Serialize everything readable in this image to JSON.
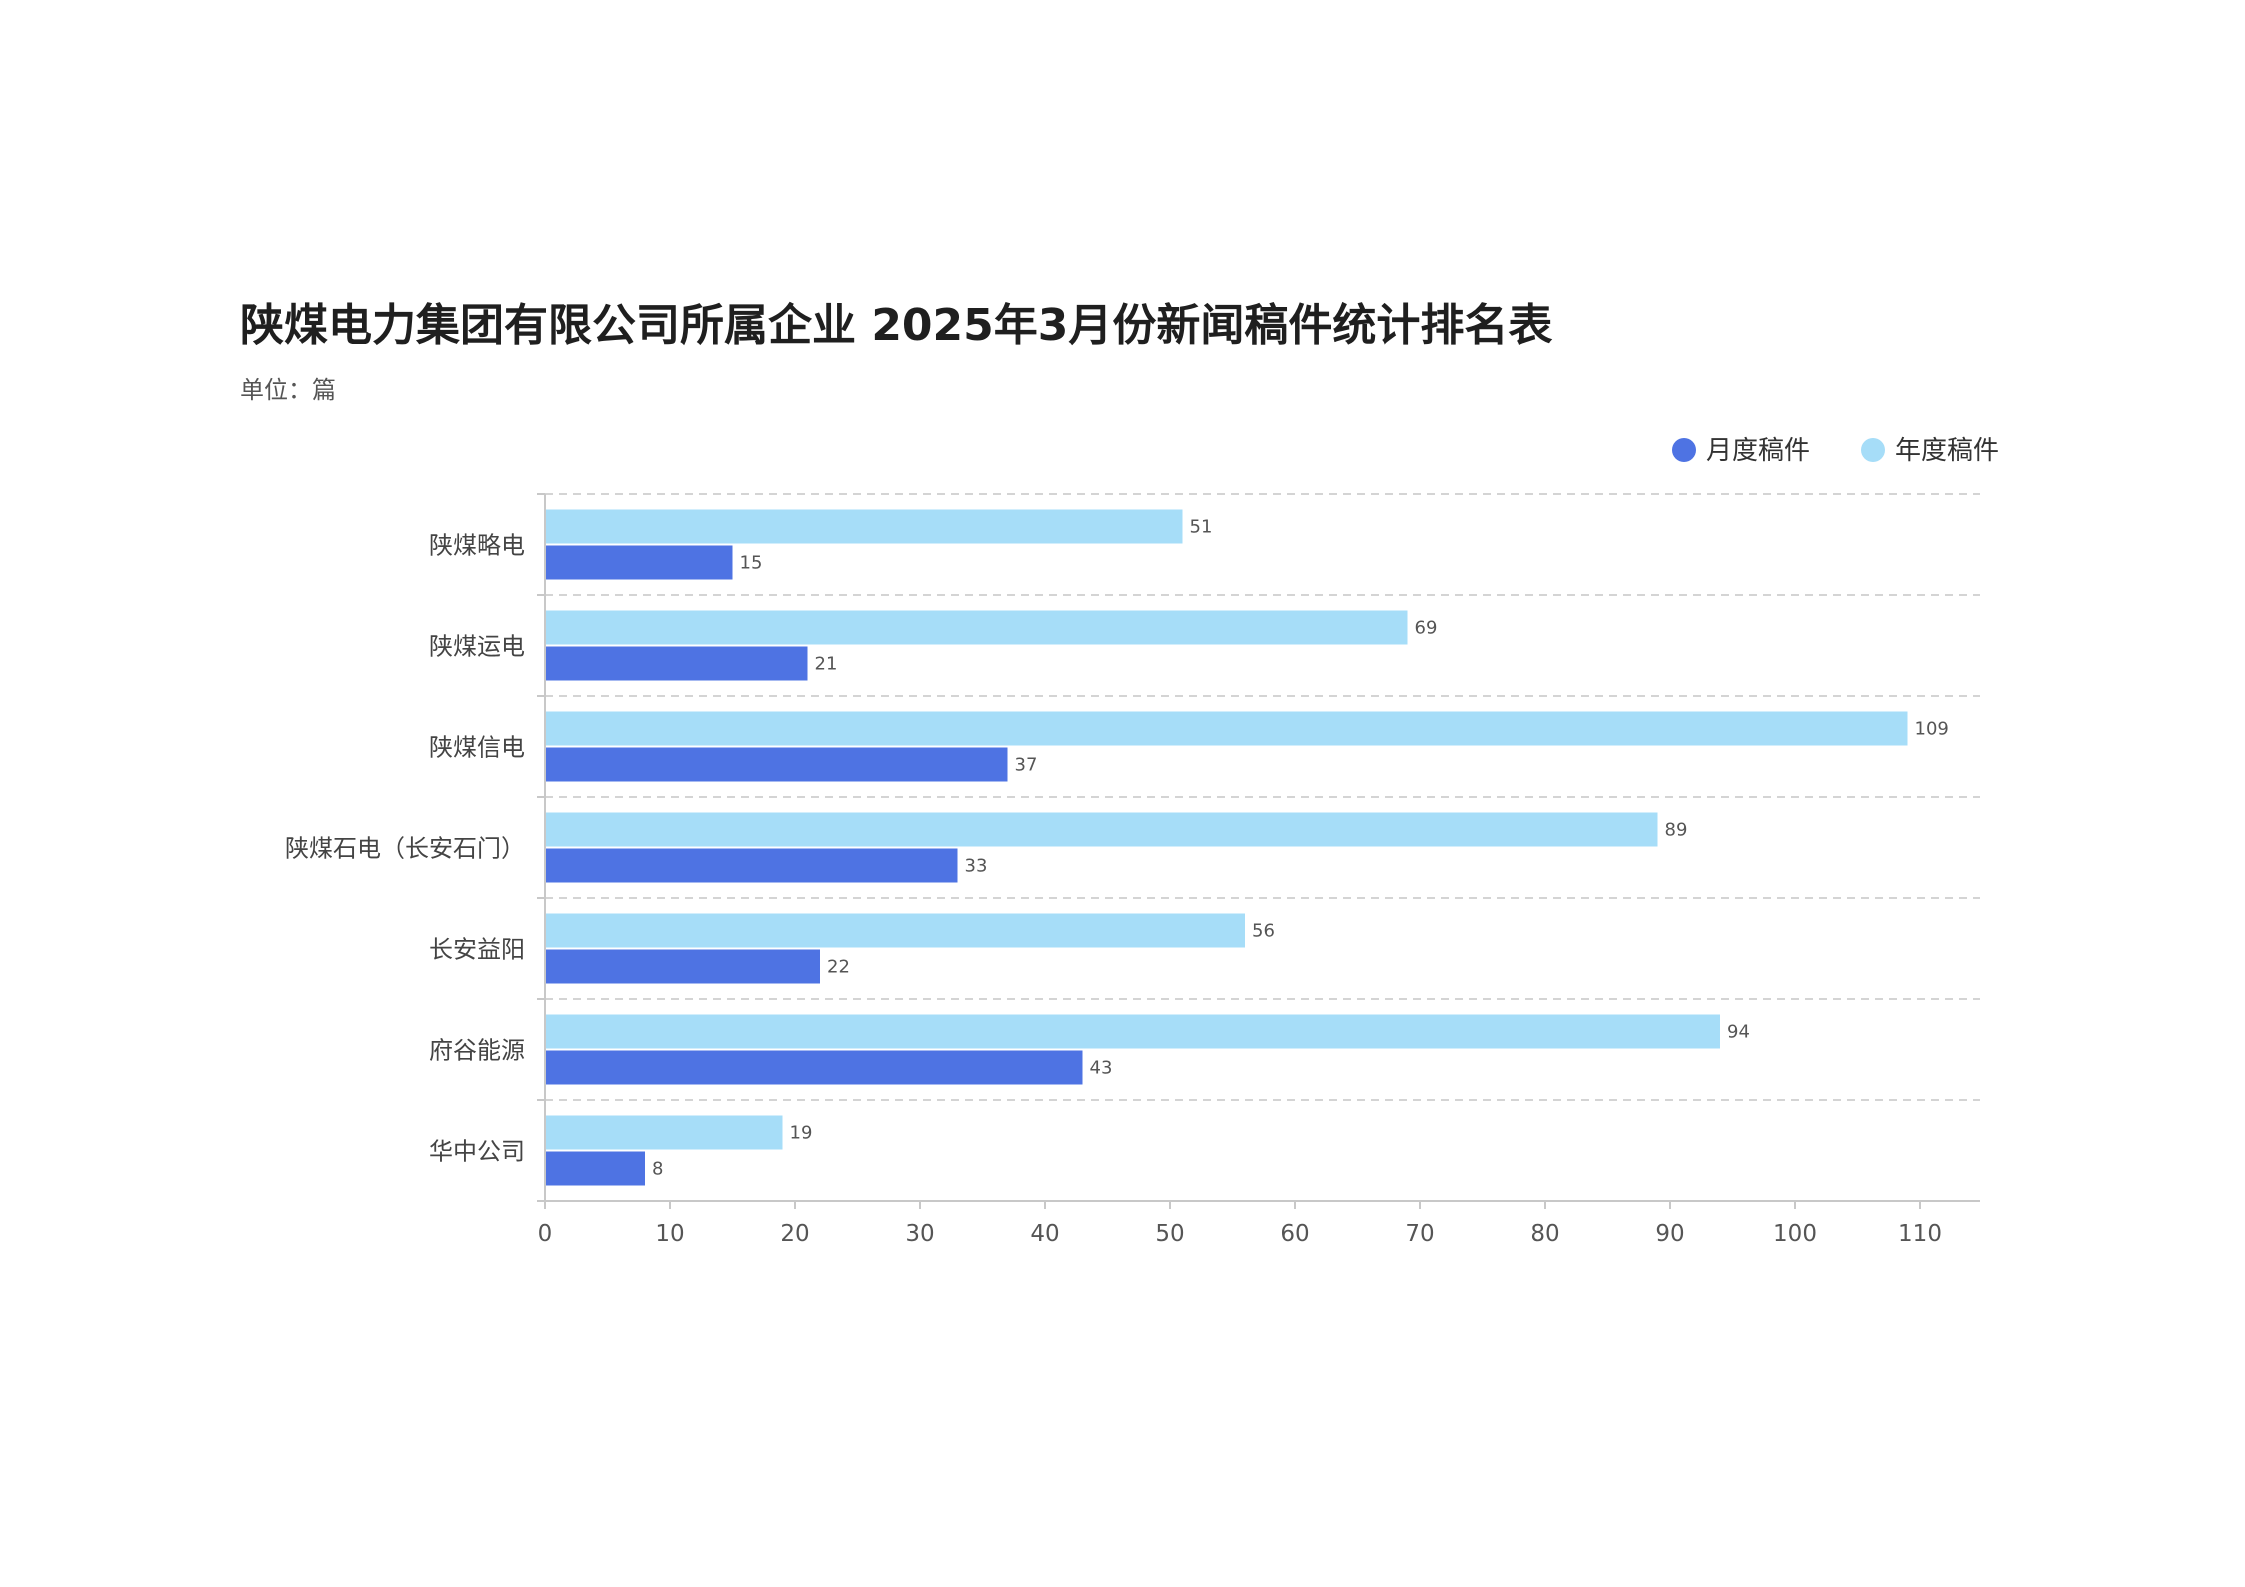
{
  "chart_data": {
    "type": "bar",
    "orientation": "horizontal",
    "title": "陕煤电力集团有限公司所属企业 2025年3月份新闻稿件统计排名表",
    "subtitle": "单位：篇",
    "categories": [
      "陕煤略电",
      "陕煤运电",
      "陕煤信电",
      "陕煤石电（长安石门）",
      "长安益阳",
      "府谷能源",
      "华中公司"
    ],
    "series": [
      {
        "name": "月度稿件",
        "color": "#4e73e3",
        "values": [
          15,
          21,
          37,
          33,
          22,
          43,
          8
        ]
      },
      {
        "name": "年度稿件",
        "color": "#a6ddf8",
        "values": [
          51,
          69,
          109,
          89,
          56,
          94,
          19
        ]
      }
    ],
    "xlim": [
      0,
      114
    ],
    "x_ticks": [
      0,
      10,
      20,
      30,
      40,
      50,
      60,
      70,
      80,
      90,
      100,
      110
    ],
    "grid": true,
    "legend_position": "top-right"
  }
}
